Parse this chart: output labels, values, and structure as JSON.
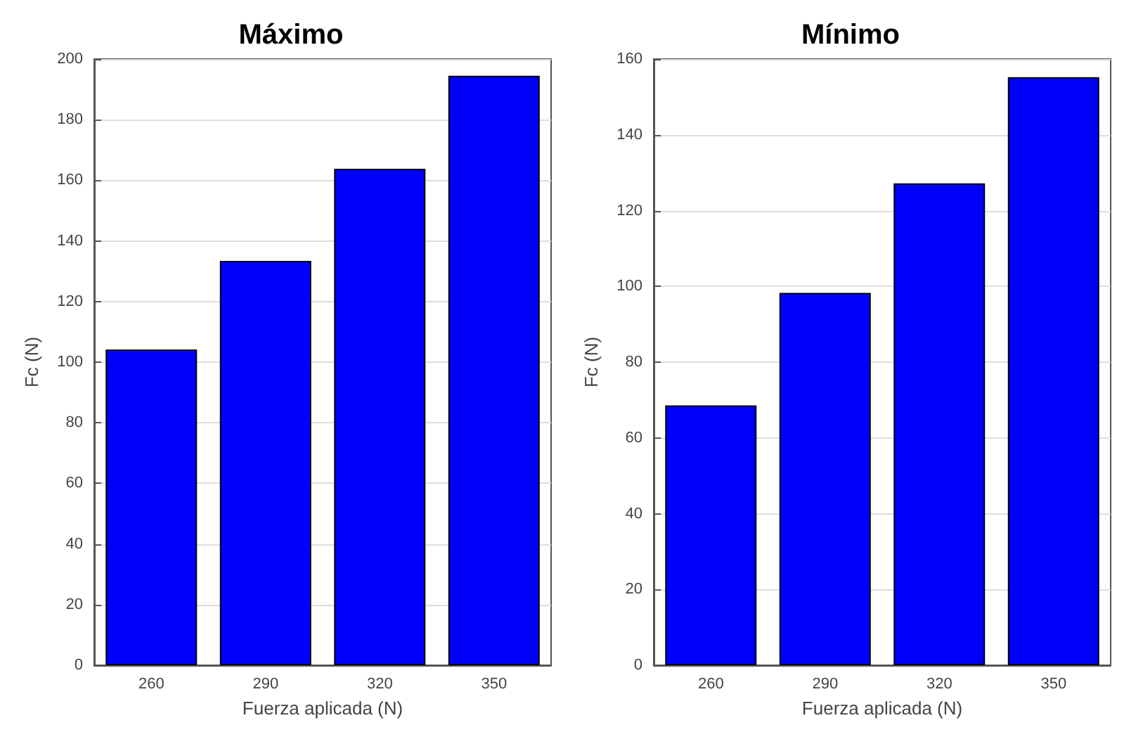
{
  "chart_data": [
    {
      "type": "bar",
      "title": "Máximo",
      "xlabel": "Fuerza aplicada (N)",
      "ylabel": "Fc (N)",
      "categories": [
        "260",
        "290",
        "320",
        "350"
      ],
      "values": [
        104.2,
        133.4,
        163.8,
        194.5
      ],
      "color": "#0000ff",
      "ylim": [
        0,
        200
      ],
      "yticks": [
        0,
        20,
        40,
        60,
        80,
        100,
        120,
        140,
        160,
        180,
        200
      ],
      "grid": "y"
    },
    {
      "type": "bar",
      "title": "Mínimo",
      "xlabel": "Fuerza aplicada (N)",
      "ylabel": "Fc (N)",
      "categories": [
        "260",
        "290",
        "320",
        "350"
      ],
      "values": [
        68.6,
        98.3,
        127.2,
        155.2
      ],
      "color": "#0000ff",
      "ylim": [
        0,
        160
      ],
      "yticks": [
        0,
        20,
        40,
        60,
        80,
        100,
        120,
        140,
        160
      ],
      "grid": "y"
    }
  ]
}
